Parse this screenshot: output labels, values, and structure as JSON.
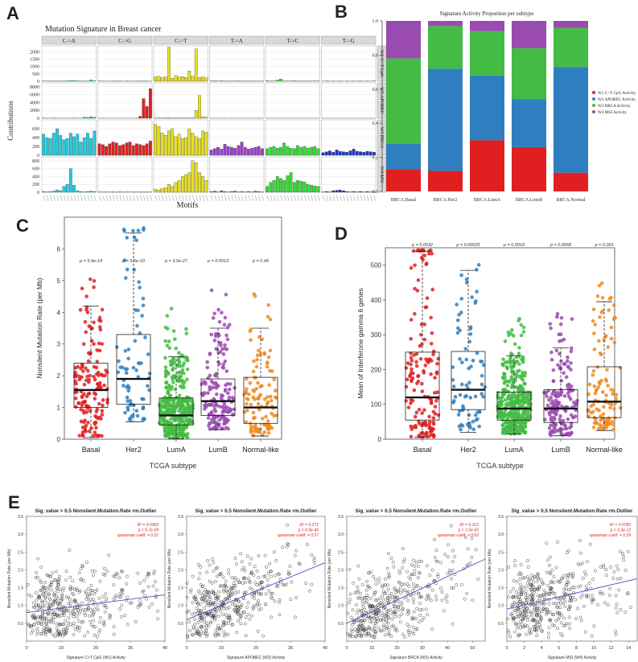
{
  "panel_labels": [
    "A",
    "B",
    "C",
    "D",
    "E"
  ],
  "chart_data": [
    {
      "panel": "A",
      "type": "bar",
      "title": "Mutation Signature in Breast cancer",
      "xlabel": "Motifs",
      "ylabel": "Contributions",
      "mutation_types": [
        "C->A",
        "C->G",
        "C->T",
        "T->A",
        "T->C",
        "T->G"
      ],
      "colors": [
        "#22ccdd",
        "#e02020",
        "#e8e020",
        "#9a3fd0",
        "#33dd33",
        "#2233cc"
      ],
      "signatures": [
        {
          "label": "W1 C>T CpG",
          "ylim": [
            0,
            2400
          ],
          "ticks": [
            0,
            500,
            1000,
            1500,
            2000
          ],
          "values": [
            [
              20,
              15,
              10,
              20,
              10,
              15,
              20,
              30,
              40,
              50,
              30,
              20,
              10,
              20,
              90,
              30
            ],
            [
              10,
              10,
              5,
              8,
              15,
              10,
              10,
              5,
              10,
              10,
              5,
              10,
              10,
              10,
              10,
              5
            ],
            [
              300,
              350,
              250,
              300,
              2300,
              200,
              400,
              300,
              320,
              260,
              700,
              350,
              2200,
              250,
              300,
              240
            ],
            [
              20,
              25,
              10,
              30,
              10,
              15,
              20,
              10,
              25,
              10,
              20,
              15,
              10,
              20,
              15,
              10
            ],
            [
              40,
              20,
              10,
              80,
              150,
              10,
              20,
              25,
              30,
              15,
              20,
              10,
              20,
              15,
              10,
              20
            ],
            [
              5,
              10,
              5,
              10,
              5,
              10,
              5,
              10,
              5,
              10,
              5,
              10,
              5,
              10,
              5,
              10
            ]
          ]
        },
        {
          "label": "W2 APOBEC",
          "ylim": [
            0,
            9000
          ],
          "ticks": [
            0,
            2000,
            4000,
            6000,
            8000
          ],
          "values": [
            [
              50,
              30,
              20,
              40,
              30,
              20,
              20,
              20,
              30,
              40,
              30,
              20,
              300,
              200,
              400,
              250
            ],
            [
              20,
              20,
              10,
              20,
              20,
              10,
              20,
              10,
              20,
              20,
              10,
              20,
              500,
              5000,
              3000,
              7500
            ],
            [
              100,
              80,
              60,
              100,
              150,
              80,
              100,
              80,
              100,
              80,
              100,
              80,
              2000,
              5800,
              400,
              300
            ],
            [
              20,
              10,
              20,
              10,
              20,
              10,
              20,
              10,
              20,
              10,
              20,
              10,
              20,
              10,
              20,
              10
            ],
            [
              20,
              10,
              20,
              10,
              20,
              10,
              20,
              10,
              20,
              10,
              20,
              10,
              20,
              10,
              20,
              10
            ],
            [
              10,
              5,
              10,
              5,
              10,
              5,
              10,
              5,
              10,
              5,
              10,
              5,
              10,
              5,
              10,
              5
            ]
          ]
        },
        {
          "label": "W3 BRCA",
          "ylim": [
            0,
            800
          ],
          "ticks": [
            0,
            200,
            400,
            600
          ],
          "values": [
            [
              480,
              400,
              380,
              500,
              600,
              450,
              350,
              380,
              500,
              420,
              480,
              300,
              400,
              500,
              380,
              550
            ],
            [
              260,
              240,
              200,
              260,
              300,
              280,
              220,
              240,
              280,
              300,
              220,
              260,
              240,
              220,
              260,
              320
            ],
            [
              700,
              650,
              500,
              450,
              550,
              600,
              420,
              480,
              380,
              400,
              600,
              500,
              420,
              380,
              550,
              520
            ],
            [
              120,
              150,
              180,
              140,
              250,
              200,
              180,
              160,
              220,
              300,
              180,
              140,
              160,
              180,
              200,
              150
            ],
            [
              150,
              180,
              200,
              160,
              180,
              280,
              200,
              160,
              150,
              220,
              180,
              200,
              160,
              180,
              200,
              150
            ],
            [
              60,
              80,
              100,
              70,
              120,
              90,
              80,
              70,
              100,
              140,
              90,
              80,
              70,
              90,
              80,
              70
            ]
          ]
        },
        {
          "label": "W4 MSI",
          "ylim": [
            0,
            900
          ],
          "ticks": [
            0,
            200,
            400,
            600,
            800
          ],
          "values": [
            [
              20,
              10,
              20,
              30,
              60,
              40,
              150,
              200,
              600,
              180,
              40,
              20,
              10,
              20,
              30,
              20
            ],
            [
              10,
              5,
              10,
              5,
              10,
              5,
              10,
              5,
              10,
              5,
              10,
              5,
              10,
              5,
              10,
              5
            ],
            [
              80,
              60,
              100,
              120,
              200,
              150,
              250,
              300,
              400,
              450,
              500,
              800,
              750,
              500,
              400,
              300
            ],
            [
              20,
              30,
              10,
              40,
              20,
              10,
              20,
              30,
              10,
              20,
              10,
              20,
              10,
              30,
              20,
              10
            ],
            [
              150,
              250,
              300,
              400,
              350,
              300,
              420,
              500,
              250,
              300,
              280,
              260,
              200,
              180,
              160,
              150
            ],
            [
              10,
              20,
              10,
              40,
              50,
              60,
              40,
              20,
              10,
              20,
              10,
              20,
              10,
              20,
              10,
              10
            ]
          ]
        }
      ]
    },
    {
      "panel": "B",
      "type": "bar",
      "title": "Signature Activity Proportion per subtype",
      "categories": [
        "BRCA.Basal",
        "BRCA.Her2",
        "BRCA.LumA",
        "BRCA.LumB",
        "BRCA.Normal"
      ],
      "ylim": [
        0,
        1
      ],
      "yticks": [
        "0.0",
        "0.2",
        "0.4",
        "0.6",
        "0.8",
        "1.0"
      ],
      "series": [
        {
          "name": "W1 C>T CpG Activity",
          "color": "#e02020",
          "values": [
            0.13,
            0.12,
            0.3,
            0.26,
            0.11
          ]
        },
        {
          "name": "W2 APOBEC Activity",
          "color": "#2f7fc0",
          "values": [
            0.15,
            0.6,
            0.38,
            0.28,
            0.62
          ]
        },
        {
          "name": "W3 BRCA Activity",
          "color": "#44bb44",
          "values": [
            0.5,
            0.25,
            0.26,
            0.3,
            0.23
          ]
        },
        {
          "name": "W4 MSI Activity",
          "color": "#9a4bb0",
          "values": [
            0.22,
            0.03,
            0.06,
            0.16,
            0.04
          ]
        }
      ]
    },
    {
      "panel": "C",
      "type": "box",
      "xlabel": "TCGA subtype",
      "ylabel": "Nonsilent Mutation Rate (per Mb)",
      "ylim": [
        0,
        7
      ],
      "yticks": [
        0,
        1,
        2,
        3,
        4,
        5,
        6
      ],
      "categories": [
        "Basal",
        "Her2",
        "LumA",
        "LumB",
        "Normal-like"
      ],
      "colors": [
        "#e02020",
        "#2f7fc0",
        "#44bb44",
        "#9a4bb0",
        "#f08a20"
      ],
      "pvalues": [
        "p = 5.9e-14",
        "p = 5.5e-10",
        "p = 3.5e-27",
        "p = 0.0013",
        "p = 0.49"
      ],
      "box": [
        {
          "q1": 1.0,
          "median": 1.55,
          "q3": 2.4,
          "wlo": 0.05,
          "whi": 4.2,
          "n": 150
        },
        {
          "q1": 1.1,
          "median": 1.9,
          "q3": 3.3,
          "wlo": 0.55,
          "whi": 6.5,
          "n": 75
        },
        {
          "q1": 0.45,
          "median": 0.75,
          "q3": 1.3,
          "wlo": 0.02,
          "whi": 2.6,
          "n": 400
        },
        {
          "q1": 0.75,
          "median": 1.2,
          "q3": 1.9,
          "wlo": 0.3,
          "whi": 3.5,
          "n": 170
        },
        {
          "q1": 0.5,
          "median": 1.0,
          "q3": 1.95,
          "wlo": 0.1,
          "whi": 3.5,
          "n": 110
        }
      ]
    },
    {
      "panel": "D",
      "type": "box",
      "xlabel": "TCGA subtype",
      "ylabel": "Mean of Interferone gamma 6 genes",
      "ylim": [
        0,
        550
      ],
      "yticks": [
        0,
        100,
        200,
        300,
        400,
        500
      ],
      "categories": [
        "Basal",
        "Her2",
        "LumA",
        "LumB",
        "Normal-like"
      ],
      "colors": [
        "#e02020",
        "#2f7fc0",
        "#44bb44",
        "#9a4bb0",
        "#f08a20"
      ],
      "pvalues": [
        "p = 0.0032",
        "p = 0.00025",
        "p = 0.0019",
        "p = 0.0068",
        "p = 0.065"
      ],
      "box": [
        {
          "q1": 55,
          "median": 120,
          "q3": 250,
          "wlo": 5,
          "whi": 540,
          "n": 150
        },
        {
          "q1": 85,
          "median": 142,
          "q3": 252,
          "wlo": 20,
          "whi": 485,
          "n": 75
        },
        {
          "q1": 55,
          "median": 88,
          "q3": 135,
          "wlo": 15,
          "whi": 240,
          "n": 400
        },
        {
          "q1": 48,
          "median": 88,
          "q3": 142,
          "wlo": 10,
          "whi": 262,
          "n": 170
        },
        {
          "q1": 62,
          "median": 108,
          "q3": 208,
          "wlo": 25,
          "whi": 395,
          "n": 110
        }
      ]
    },
    {
      "panel": "E",
      "type": "scatter",
      "ylabel": "Nonsilent Mutation Rate (per Mb)",
      "ylim": [
        0,
        3.5
      ],
      "yticks": [
        "0.5",
        "1.0",
        "1.5",
        "2.0",
        "2.5",
        "3.0",
        "3.5"
      ],
      "plots": [
        {
          "title": "Sig_value > 0.5 Nonsilent.Mutation.Rate rm.Outlier",
          "xlabel": "Signature C>T CpG (W1) Activity",
          "xlim": [
            0,
            40
          ],
          "xticks": [
            0,
            10,
            20,
            30,
            40
          ],
          "stats": [
            "R² = 0.0383",
            "p = 9.7e-09",
            "spearman coeff. = 0.21"
          ],
          "line": [
            0.8,
            1.3
          ]
        },
        {
          "title": "Sig_value > 0.5 Nonsilent.Mutation.Rate rm.Outlier",
          "xlabel": "Signature APOBEC (W2) Activity",
          "xlim": [
            0,
            40
          ],
          "xticks": [
            0,
            10,
            20,
            30,
            40
          ],
          "stats": [
            "R² = 0.271",
            "p = 4.9e-46",
            "spearman coeff. = 0.57"
          ],
          "line": [
            0.6,
            2.2
          ]
        },
        {
          "title": "Sig_value > 0.5 Nonsilent.Mutation.Rate rm.Outlier",
          "xlabel": "Signature BRCA (W3) Activity",
          "xlim": [
            0,
            55
          ],
          "xticks": [
            0,
            10,
            20,
            30,
            40,
            50
          ],
          "stats": [
            "R² = 0.312",
            "p = 3.5e-65",
            "spearman coeff. = 0.62"
          ],
          "line": [
            0.5,
            2.3
          ]
        },
        {
          "title": "Sig_value > 0.5 Nonsilent.Mutation.Rate rm.Outlier",
          "xlabel": "Signature MSI (W4) Activity",
          "xlim": [
            0,
            15
          ],
          "xticks": [
            0,
            2,
            4,
            6,
            8,
            10,
            12,
            14
          ],
          "stats": [
            "R² = 0.0785",
            "p = 3.3e-12",
            "spearman coeff. = 0.29"
          ],
          "line": [
            0.9,
            1.75
          ]
        }
      ]
    }
  ]
}
